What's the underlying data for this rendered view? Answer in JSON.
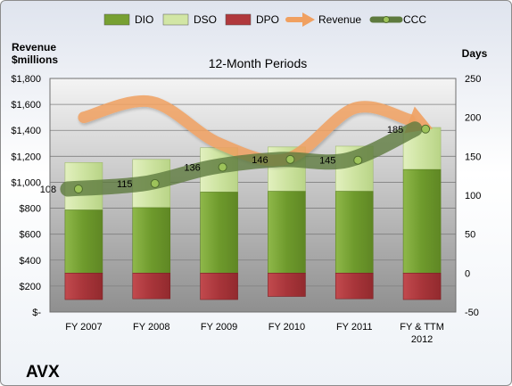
{
  "chart_data": {
    "type": "bar",
    "title": "12-Month Periods",
    "company": "AVX",
    "y_left_label_lines": [
      "Revenue",
      "$millions"
    ],
    "y_right_label": "Days",
    "categories": [
      [
        "FY 2007"
      ],
      [
        "FY 2008"
      ],
      [
        "FY 2009"
      ],
      [
        "FY 2010"
      ],
      [
        "FY 2011"
      ],
      [
        "FY & TTM",
        "2012"
      ]
    ],
    "left_axis": {
      "min": 0,
      "max": 1800,
      "step": 200,
      "tick_labels": [
        "$-",
        "$200",
        "$400",
        "$600",
        "$800",
        "$1,000",
        "$1,200",
        "$1,400",
        "$1,600",
        "$1,800"
      ]
    },
    "right_axis": {
      "min": -50,
      "max": 250,
      "step": 50,
      "tick_labels": [
        "-50",
        "0",
        "50",
        "100",
        "150",
        "200",
        "250"
      ]
    },
    "legend": {
      "position": "top",
      "items": [
        {
          "name": "DIO",
          "kind": "bar",
          "color": "#77a032"
        },
        {
          "name": "DSO",
          "kind": "bar",
          "color": "#d2e6a5"
        },
        {
          "name": "DPO",
          "kind": "bar",
          "color": "#b0383c"
        },
        {
          "name": "Revenue",
          "kind": "arrow",
          "color": "#f0a060"
        },
        {
          "name": "CCC",
          "kind": "line",
          "color": "#5e7a3e"
        }
      ]
    },
    "series": [
      {
        "name": "DIO",
        "axis": "right",
        "values": [
          81,
          84,
          104,
          105,
          105,
          133
        ]
      },
      {
        "name": "DSO",
        "axis": "right",
        "values": [
          61,
          62,
          57,
          57,
          58,
          54
        ]
      },
      {
        "name": "DPO",
        "axis": "right",
        "values": [
          -34,
          -33,
          -34,
          -30,
          -33,
          -34
        ]
      },
      {
        "name": "Revenue",
        "axis": "left",
        "values": [
          1500,
          1620,
          1300,
          1180,
          1570,
          1440
        ]
      },
      {
        "name": "CCC",
        "axis": "right",
        "values": [
          108,
          115,
          136,
          146,
          145,
          185
        ]
      }
    ],
    "ccc_labels": [
      "108",
      "115",
      "136",
      "146",
      "145",
      "185"
    ],
    "colors": {
      "dio": "#77a032",
      "dso": "#d2e6a5",
      "dpo": "#b0383c",
      "revenue": "#f0a060",
      "ccc": "#5e7a3e",
      "plot_top": "#f4f4f4",
      "plot_bottom": "#8f8f8f"
    },
    "grid": true
  }
}
